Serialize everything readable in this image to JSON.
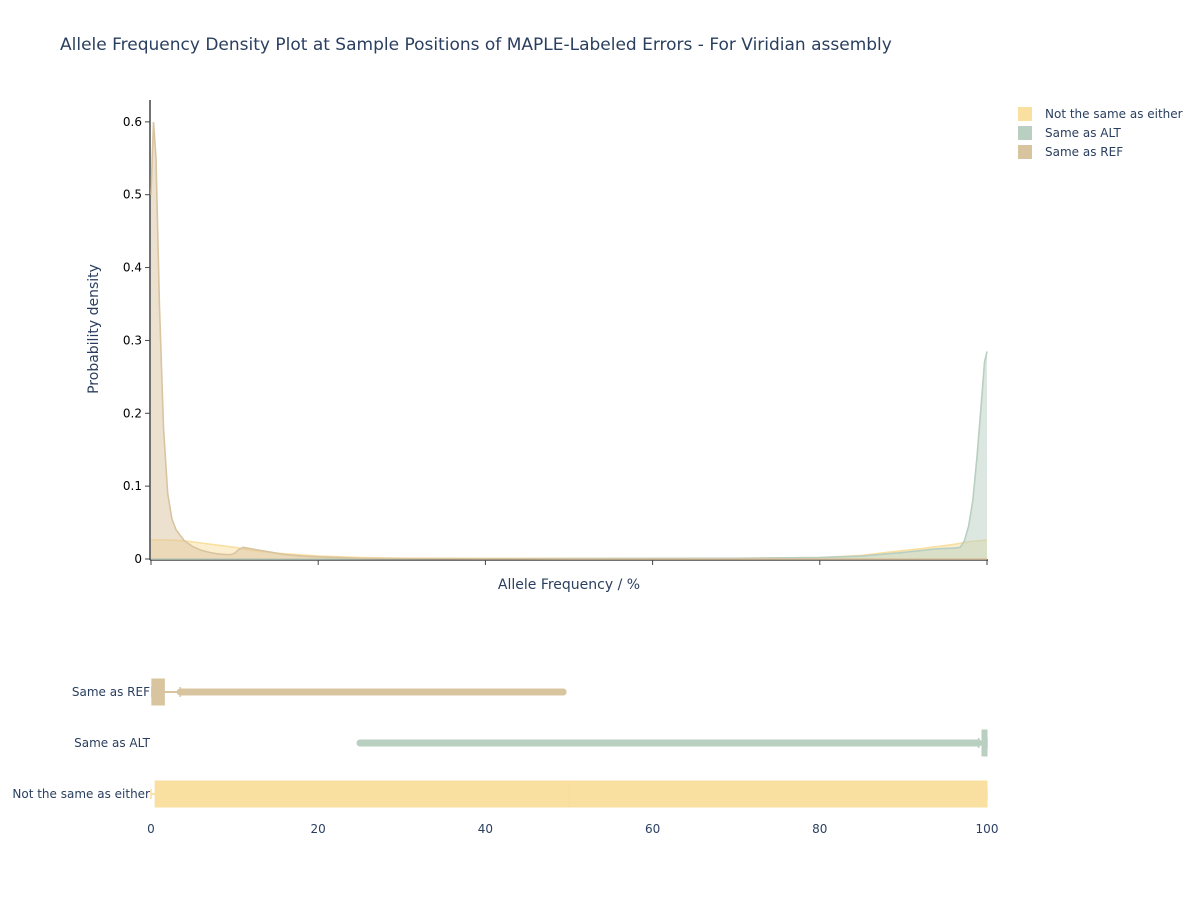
{
  "chart_data": [
    {
      "type": "area",
      "title": "Allele Frequency Density Plot at Sample Positions of MAPLE-Labeled Errors - For Viridian assembly",
      "xlabel": "Allele Frequency / %",
      "ylabel": "Probability density",
      "xlim": [
        0,
        100
      ],
      "ylim": [
        0,
        0.63
      ],
      "yticks": [
        {
          "v": 0,
          "label": "0"
        },
        {
          "v": 0.1,
          "label": "0.1"
        },
        {
          "v": 0.2,
          "label": "0.2"
        },
        {
          "v": 0.3,
          "label": "0.3"
        },
        {
          "v": 0.4,
          "label": "0.4"
        },
        {
          "v": 0.5,
          "label": "0.5"
        },
        {
          "v": 0.6,
          "label": "0.6"
        }
      ],
      "xticks": [
        0,
        20,
        40,
        60,
        80,
        100
      ],
      "legend_position": "top-right",
      "series": [
        {
          "name": "Same as REF",
          "color": "#d9c4a0",
          "points": [
            [
              0,
              0.5
            ],
            [
              0.3,
              0.6
            ],
            [
              0.6,
              0.55
            ],
            [
              1,
              0.35
            ],
            [
              1.5,
              0.18
            ],
            [
              2,
              0.09
            ],
            [
              2.5,
              0.055
            ],
            [
              3,
              0.04
            ],
            [
              4,
              0.025
            ],
            [
              5,
              0.017
            ],
            [
              6,
              0.012
            ],
            [
              7,
              0.009
            ],
            [
              8,
              0.007
            ],
            [
              9,
              0.006
            ],
            [
              9.5,
              0.006
            ],
            [
              10,
              0.008
            ],
            [
              10.5,
              0.013
            ],
            [
              11,
              0.016
            ],
            [
              12,
              0.014
            ],
            [
              14,
              0.01
            ],
            [
              16,
              0.006
            ],
            [
              18,
              0.004
            ],
            [
              20,
              0.003
            ],
            [
              25,
              0.001
            ],
            [
              30,
              0.0005
            ],
            [
              40,
              0.0003
            ],
            [
              50,
              0.0002
            ],
            [
              60,
              0.0001
            ],
            [
              80,
              0.0
            ],
            [
              100,
              0.0
            ]
          ]
        },
        {
          "name": "Same as ALT",
          "color": "#b8cfc2",
          "points": [
            [
              0,
              0.0
            ],
            [
              20,
              0.0
            ],
            [
              30,
              0.0003
            ],
            [
              50,
              0.0005
            ],
            [
              70,
              0.001
            ],
            [
              80,
              0.002
            ],
            [
              85,
              0.004
            ],
            [
              90,
              0.009
            ],
            [
              94,
              0.014
            ],
            [
              96,
              0.015
            ],
            [
              96.8,
              0.016
            ],
            [
              97.3,
              0.025
            ],
            [
              97.8,
              0.045
            ],
            [
              98.3,
              0.08
            ],
            [
              98.8,
              0.14
            ],
            [
              99.3,
              0.21
            ],
            [
              99.7,
              0.27
            ],
            [
              100,
              0.285
            ]
          ]
        },
        {
          "name": "Not the same as either",
          "color": "#f9dfa0",
          "points": [
            [
              0,
              0.026
            ],
            [
              2,
              0.026
            ],
            [
              4,
              0.025
            ],
            [
              6,
              0.022
            ],
            [
              8,
              0.019
            ],
            [
              10,
              0.016
            ],
            [
              12,
              0.012
            ],
            [
              15,
              0.008
            ],
            [
              20,
              0.004
            ],
            [
              25,
              0.002
            ],
            [
              30,
              0.001
            ],
            [
              40,
              0.0008
            ],
            [
              50,
              0.0008
            ],
            [
              60,
              0.0008
            ],
            [
              70,
              0.001
            ],
            [
              80,
              0.002
            ],
            [
              85,
              0.005
            ],
            [
              88,
              0.009
            ],
            [
              92,
              0.014
            ],
            [
              96,
              0.02
            ],
            [
              98,
              0.024
            ],
            [
              100,
              0.026
            ]
          ]
        }
      ]
    },
    {
      "type": "box",
      "xlim": [
        0,
        100
      ],
      "xticks": [
        0,
        20,
        40,
        60,
        80,
        100
      ],
      "categories": [
        "Same as REF",
        "Same as ALT",
        "Not the same as either"
      ],
      "boxes": [
        {
          "name": "Same as REF",
          "color": "#d9c4a0",
          "q1": 0.1,
          "median": 0.5,
          "q3": 1.6,
          "whisker_low": 0.1,
          "whisker_high": 3.5,
          "outlier_from": 3.5,
          "outlier_to": 49.3
        },
        {
          "name": "Same as ALT",
          "color": "#b8cfc2",
          "q1": 99.4,
          "median": 99.8,
          "q3": 100,
          "whisker_low": 99.0,
          "whisker_high": 100,
          "outlier_from": 25,
          "outlier_to": 99.0
        },
        {
          "name": "Not the same as either",
          "color": "#f9dfa0",
          "q1": 0.5,
          "median": 50,
          "q3": 100,
          "whisker_low": 0,
          "whisker_high": 100,
          "outlier_from": null,
          "outlier_to": null
        }
      ]
    }
  ]
}
